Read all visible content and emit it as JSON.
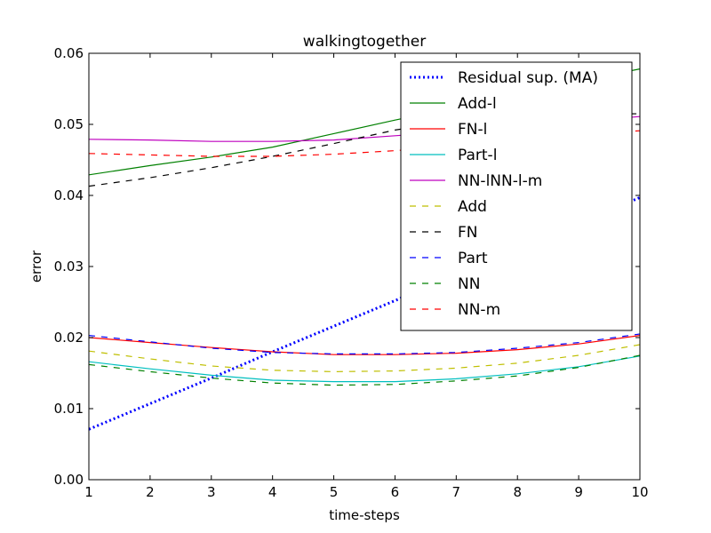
{
  "chart_data": {
    "type": "line",
    "title": "walkingtogether",
    "xlabel": "time-steps",
    "ylabel": "error",
    "x": [
      1,
      2,
      3,
      4,
      5,
      6,
      7,
      8,
      9,
      10
    ],
    "x_ticks": [
      "1",
      "2",
      "3",
      "4",
      "5",
      "6",
      "7",
      "8",
      "9",
      "10"
    ],
    "y_ticks": [
      "0.00",
      "0.01",
      "0.02",
      "0.03",
      "0.04",
      "0.05",
      "0.06"
    ],
    "xlim": [
      1,
      10
    ],
    "ylim": [
      0,
      0.06
    ],
    "grid": false,
    "legend_position": "top-right",
    "series": [
      {
        "name": "Residual sup. (MA)",
        "color": "#0000ff",
        "style": "dotted",
        "values": [
          0.0071,
          0.0107,
          0.0143,
          0.018,
          0.0216,
          0.0252,
          0.0289,
          0.0325,
          0.0361,
          0.0397
        ]
      },
      {
        "name": "Add-l",
        "color": "#008000",
        "style": "solid",
        "values": [
          0.0429,
          0.0442,
          0.0454,
          0.0468,
          0.0487,
          0.0506,
          0.0524,
          0.0543,
          0.0561,
          0.0578
        ]
      },
      {
        "name": "FN-l",
        "color": "#ff0000",
        "style": "solid",
        "values": [
          0.02,
          0.0193,
          0.0186,
          0.018,
          0.0176,
          0.0176,
          0.0178,
          0.0183,
          0.0191,
          0.0203
        ]
      },
      {
        "name": "Part-l",
        "color": "#00bfbf",
        "style": "solid",
        "values": [
          0.0166,
          0.0156,
          0.0147,
          0.014,
          0.0138,
          0.0138,
          0.0142,
          0.0149,
          0.0159,
          0.0174
        ]
      },
      {
        "name": "NN-lNN-l-m",
        "color": "#bf00bf",
        "style": "solid",
        "values": [
          0.0479,
          0.0478,
          0.0476,
          0.0476,
          0.0478,
          0.0484,
          0.049,
          0.0497,
          0.0504,
          0.0511
        ]
      },
      {
        "name": "Add",
        "color": "#bfbf00",
        "style": "dashed",
        "values": [
          0.0181,
          0.017,
          0.016,
          0.0154,
          0.0152,
          0.0153,
          0.0157,
          0.0164,
          0.0175,
          0.019
        ]
      },
      {
        "name": "FN",
        "color": "#000000",
        "style": "dashed",
        "values": [
          0.0413,
          0.0425,
          0.0439,
          0.0455,
          0.0473,
          0.0492,
          0.0505,
          0.0512,
          0.0514,
          0.0515
        ]
      },
      {
        "name": "Part",
        "color": "#0000ff",
        "style": "dashed",
        "values": [
          0.0203,
          0.0194,
          0.0185,
          0.0179,
          0.0177,
          0.0177,
          0.0179,
          0.0185,
          0.0193,
          0.0205
        ]
      },
      {
        "name": "NN",
        "color": "#008000",
        "style": "dashed",
        "values": [
          0.0162,
          0.0152,
          0.0143,
          0.0136,
          0.0133,
          0.0134,
          0.0139,
          0.0146,
          0.0158,
          0.0175
        ]
      },
      {
        "name": "NN-m",
        "color": "#ff0000",
        "style": "dashed",
        "values": [
          0.0459,
          0.0457,
          0.0455,
          0.0455,
          0.0458,
          0.0463,
          0.047,
          0.0478,
          0.0486,
          0.0491
        ]
      }
    ]
  }
}
